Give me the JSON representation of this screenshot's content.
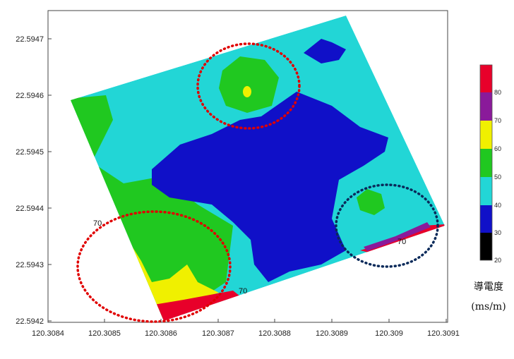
{
  "map": {
    "x_ticks": [
      "120.3084",
      "120.3085",
      "120.3086",
      "120.3087",
      "120.3088",
      "120.3089",
      "120.309",
      "120.3091"
    ],
    "y_ticks": [
      "22.5947",
      "22.5946",
      "22.5945",
      "22.5944",
      "22.5943",
      "22.5942"
    ],
    "contour_labels": [
      "70",
      "70",
      "70"
    ]
  },
  "colorbar": {
    "ticks": [
      "80",
      "70",
      "60",
      "50",
      "40",
      "30",
      "20"
    ],
    "colors": [
      "#e8002a",
      "#8a1a9a",
      "#f0f000",
      "#20c820",
      "#22d6d6",
      "#1010c8",
      "#000000"
    ],
    "title": "導電度",
    "unit": "(ms/m)"
  },
  "annotations": {
    "red_circle_color": "#e00000",
    "blue_circle_color": "#0a2a5a"
  }
}
